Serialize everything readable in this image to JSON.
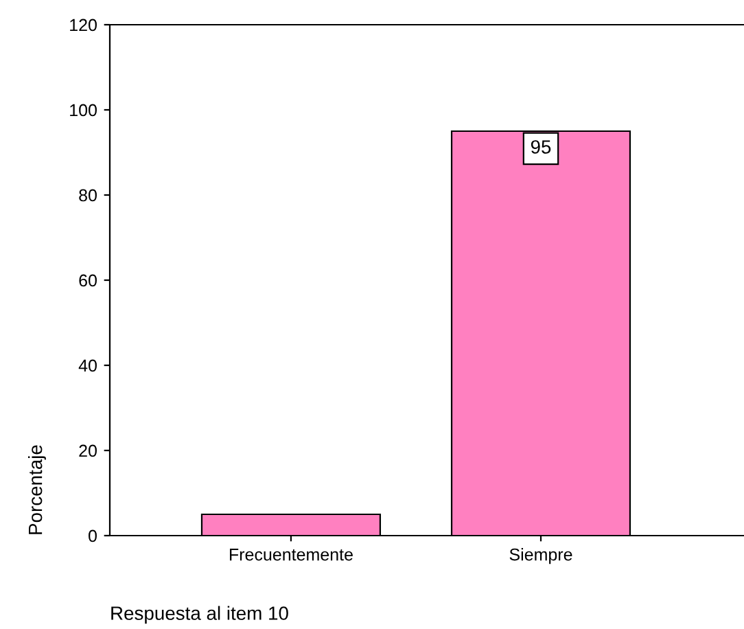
{
  "chart_data": {
    "type": "bar",
    "xlabel": "Respuesta al item 10",
    "ylabel": "Porcentaje",
    "categories": [
      "Frecuentemente",
      "Siempre"
    ],
    "values": [
      5,
      95
    ],
    "value_labels": [
      null,
      "95"
    ],
    "color": "#ff80c0",
    "ylim": [
      0,
      120
    ],
    "yticks": [
      0,
      20,
      40,
      60,
      80,
      100,
      120
    ],
    "grid": false
  }
}
